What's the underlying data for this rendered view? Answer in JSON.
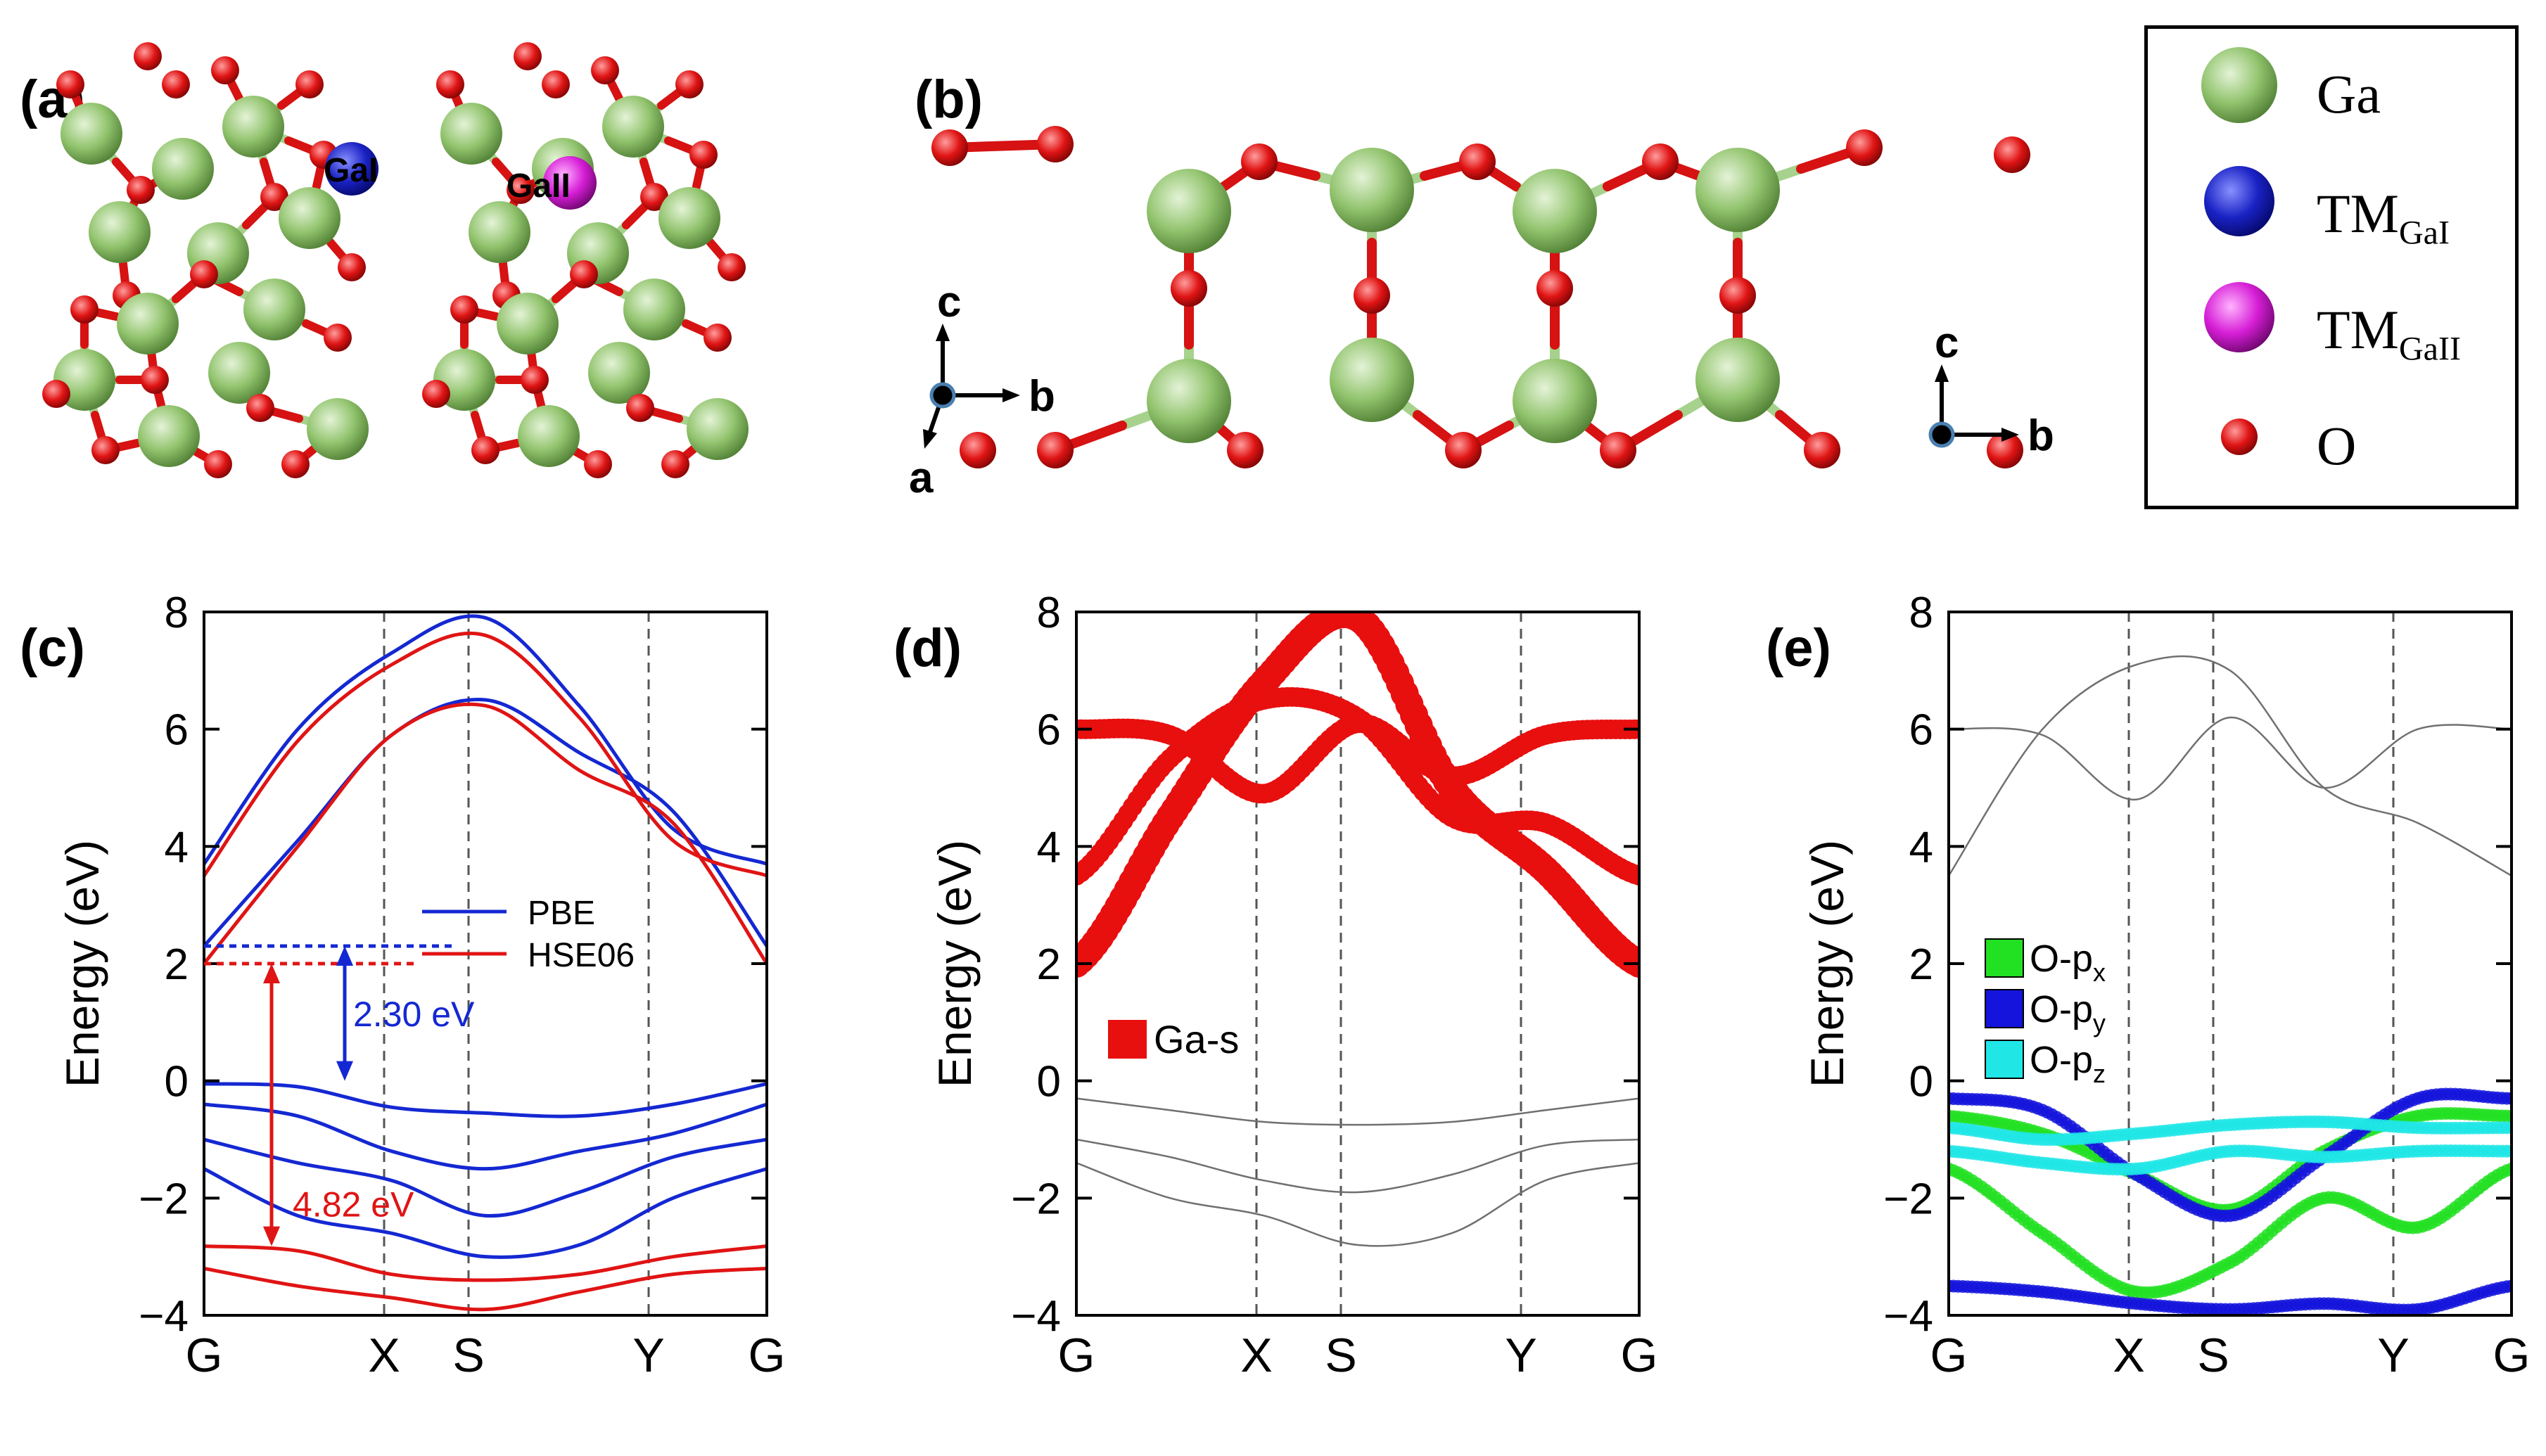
{
  "panels": {
    "a": {
      "label": "(a)",
      "atom_labels": [
        "GaI",
        "GaII"
      ]
    },
    "b": {
      "label": "(b)",
      "axes": {
        "c": "c",
        "b": "b",
        "a": "a"
      }
    },
    "c": {
      "label": "(c)"
    },
    "d": {
      "label": "(d)"
    },
    "e": {
      "label": "(e)"
    }
  },
  "species_legend": [
    {
      "name": "Ga",
      "sub": "",
      "color": "#8fc56f"
    },
    {
      "name": "TM",
      "sub": "GaI",
      "color": "#1a22c4"
    },
    {
      "name": "TM",
      "sub": "GaII",
      "color": "#d61ed6"
    },
    {
      "name": "O",
      "sub": "",
      "color": "#e01414"
    }
  ],
  "chart_data": [
    {
      "type": "line",
      "panel": "(c)",
      "ylabel": "Energy (eV)",
      "ylim": [
        -4,
        8
      ],
      "yticks": [
        "8",
        "6",
        "4",
        "2",
        "0",
        "−2",
        "−4"
      ],
      "yticks_values": [
        8,
        6,
        4,
        2,
        0,
        -2,
        -4
      ],
      "kpath": [
        "G",
        "X",
        "S",
        "Y",
        "G"
      ],
      "kpos": [
        0,
        0.32,
        0.47,
        0.79,
        1
      ],
      "series": [
        {
          "name": "PBE",
          "color": "#1428d2",
          "note": "VBM 0, CBM 2.30 (at G)",
          "bands": [
            [
              3.7,
              6.0,
              7.3,
              7.9,
              6.4,
              4.3,
              3.7
            ],
            [
              2.3,
              4.1,
              5.9,
              6.5,
              5.6,
              4.6,
              2.3
            ],
            [
              -0.05,
              -0.1,
              -0.45,
              -0.55,
              -0.6,
              -0.4,
              -0.05
            ],
            [
              -0.4,
              -0.6,
              -1.2,
              -1.5,
              -1.2,
              -0.9,
              -0.4
            ],
            [
              -1.0,
              -1.4,
              -1.7,
              -2.3,
              -1.9,
              -1.3,
              -1.0
            ],
            [
              -1.5,
              -2.3,
              -2.6,
              -3.0,
              -2.8,
              -2.0,
              -1.5
            ]
          ]
        },
        {
          "name": "HSE06",
          "color": "#e01414",
          "note": "VBM -2.82 ref, CBM 2.0 (at G)",
          "bands": [
            [
              3.5,
              5.8,
              7.1,
              7.6,
              6.2,
              4.1,
              3.5
            ],
            [
              2.0,
              4.0,
              5.9,
              6.4,
              5.3,
              4.4,
              2.0
            ],
            [
              -2.82,
              -2.9,
              -3.3,
              -3.4,
              -3.3,
              -3.0,
              -2.82
            ],
            [
              -3.2,
              -3.5,
              -3.7,
              -3.9,
              -3.6,
              -3.3,
              -3.2
            ]
          ]
        }
      ],
      "annotations": [
        {
          "text": "2.30 eV",
          "color": "#1428d2",
          "from": 0,
          "to": 2.3
        },
        {
          "text": "4.82 eV",
          "color": "#e01414",
          "from": -2.82,
          "to": 2.0
        }
      ],
      "legend": [
        "PBE",
        "HSE06"
      ]
    },
    {
      "type": "scatter",
      "panel": "(d)",
      "ylabel": "Energy (eV)",
      "ylim": [
        -4,
        8
      ],
      "yticks": [
        "8",
        "6",
        "4",
        "2",
        "0",
        "−2",
        "−4"
      ],
      "yticks_values": [
        8,
        6,
        4,
        2,
        0,
        -2,
        -4
      ],
      "kpath": [
        "G",
        "X",
        "S",
        "Y",
        "G"
      ],
      "kpos": [
        0,
        0.32,
        0.47,
        0.79,
        1
      ],
      "series": [
        {
          "name": "Ga-s",
          "color": "#e80f0f",
          "bands": [
            [
              2.0,
              4.5,
              6.8,
              7.9,
              5.0,
              3.6,
              2.0
            ],
            [
              3.5,
              5.5,
              6.5,
              6.2,
              4.5,
              4.4,
              3.5
            ],
            [
              6.0,
              5.9,
              4.9,
              6.1,
              5.2,
              5.9,
              6.0
            ]
          ]
        }
      ],
      "background_bands": [
        [
          -0.3,
          -0.5,
          -0.7,
          -0.75,
          -0.7,
          -0.5,
          -0.3
        ],
        [
          -1.0,
          -1.3,
          -1.7,
          -1.9,
          -1.6,
          -1.1,
          -1.0
        ],
        [
          -1.4,
          -2.0,
          -2.3,
          -2.8,
          -2.6,
          -1.7,
          -1.4
        ]
      ],
      "legend": [
        "Ga-s"
      ]
    },
    {
      "type": "scatter",
      "panel": "(e)",
      "ylabel": "Energy (eV)",
      "ylim": [
        -4,
        8
      ],
      "yticks": [
        "8",
        "6",
        "4",
        "2",
        "0",
        "−2",
        "−4"
      ],
      "yticks_values": [
        8,
        6,
        4,
        2,
        0,
        -2,
        -4
      ],
      "kpath": [
        "G",
        "X",
        "S",
        "Y",
        "G"
      ],
      "kpos": [
        0,
        0.32,
        0.47,
        0.79,
        1
      ],
      "series": [
        {
          "name": "O-px",
          "label_main": "O-p",
          "label_sub": "x",
          "color": "#22e022",
          "bands": [
            [
              -0.6,
              -0.9,
              -1.6,
              -2.2,
              -1.2,
              -0.6,
              -0.6
            ],
            [
              -1.5,
              -2.6,
              -3.6,
              -3.1,
              -2.0,
              -2.5,
              -1.5
            ]
          ]
        },
        {
          "name": "O-py",
          "label_main": "O-p",
          "label_sub": "y",
          "color": "#1414dc",
          "bands": [
            [
              -0.3,
              -0.5,
              -1.6,
              -2.3,
              -1.3,
              -0.3,
              -0.3
            ],
            [
              -3.5,
              -3.6,
              -3.8,
              -3.9,
              -3.8,
              -3.9,
              -3.5
            ]
          ]
        },
        {
          "name": "O-pz",
          "label_main": "O-p",
          "label_sub": "z",
          "color": "#20e6e6",
          "bands": [
            [
              -0.8,
              -1.0,
              -0.9,
              -0.75,
              -0.7,
              -0.8,
              -0.8
            ],
            [
              -1.2,
              -1.4,
              -1.5,
              -1.2,
              -1.3,
              -1.2,
              -1.2
            ]
          ]
        }
      ],
      "background_bands": [
        [
          3.5,
          6.0,
          7.1,
          7.0,
          5.0,
          4.4,
          3.5
        ],
        [
          6.0,
          5.9,
          4.8,
          6.2,
          5.0,
          6.0,
          6.0
        ]
      ],
      "legend": [
        "O-px",
        "O-py",
        "O-pz"
      ]
    }
  ]
}
